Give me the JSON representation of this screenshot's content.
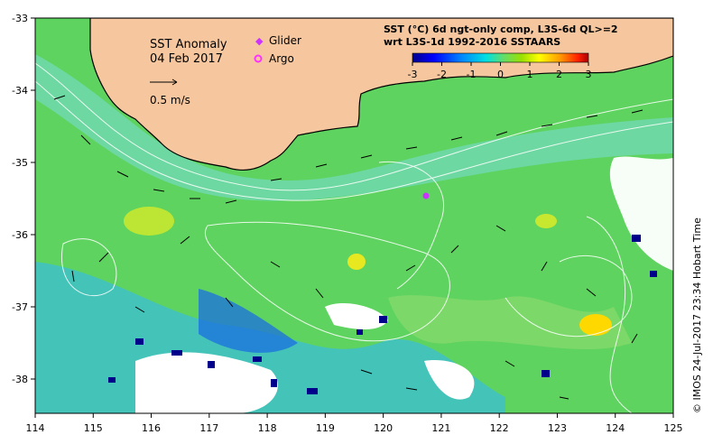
{
  "title": {
    "line1": "SST Anomaly",
    "line2": "04 Feb 2017"
  },
  "scale_label": "0.5 m/s",
  "legend": {
    "glider": "Glider",
    "argo": "Argo",
    "glider_color": "#cc33ff",
    "argo_color": "#ff33ff"
  },
  "colorbar": {
    "title1": "SST (°C) 6d ngt-only comp, L3S-6d QL>=2",
    "title2": "wrt L3S-1d 1992-2016 SSTAARS",
    "ticks": [
      "-3",
      "-2",
      "-1",
      "0",
      "1",
      "2",
      "3"
    ],
    "colors": [
      "#00008b",
      "#0000ff",
      "#0088ff",
      "#00e0e0",
      "#66dd66",
      "#99e000",
      "#ffff00",
      "#ff9900",
      "#ff2200",
      "#aa0000"
    ]
  },
  "axes": {
    "lon_ticks": [
      "114",
      "115",
      "116",
      "117",
      "118",
      "119",
      "120",
      "121",
      "122",
      "123",
      "124",
      "125"
    ],
    "lat_ticks": [
      "-33",
      "-34",
      "-35",
      "-36",
      "-37",
      "-38"
    ]
  },
  "credit": "©  IMOS 24-Jul-2017 23:34 Hobart Time",
  "colors": {
    "land": "#f6c79f",
    "sea": "#5fd35f"
  }
}
